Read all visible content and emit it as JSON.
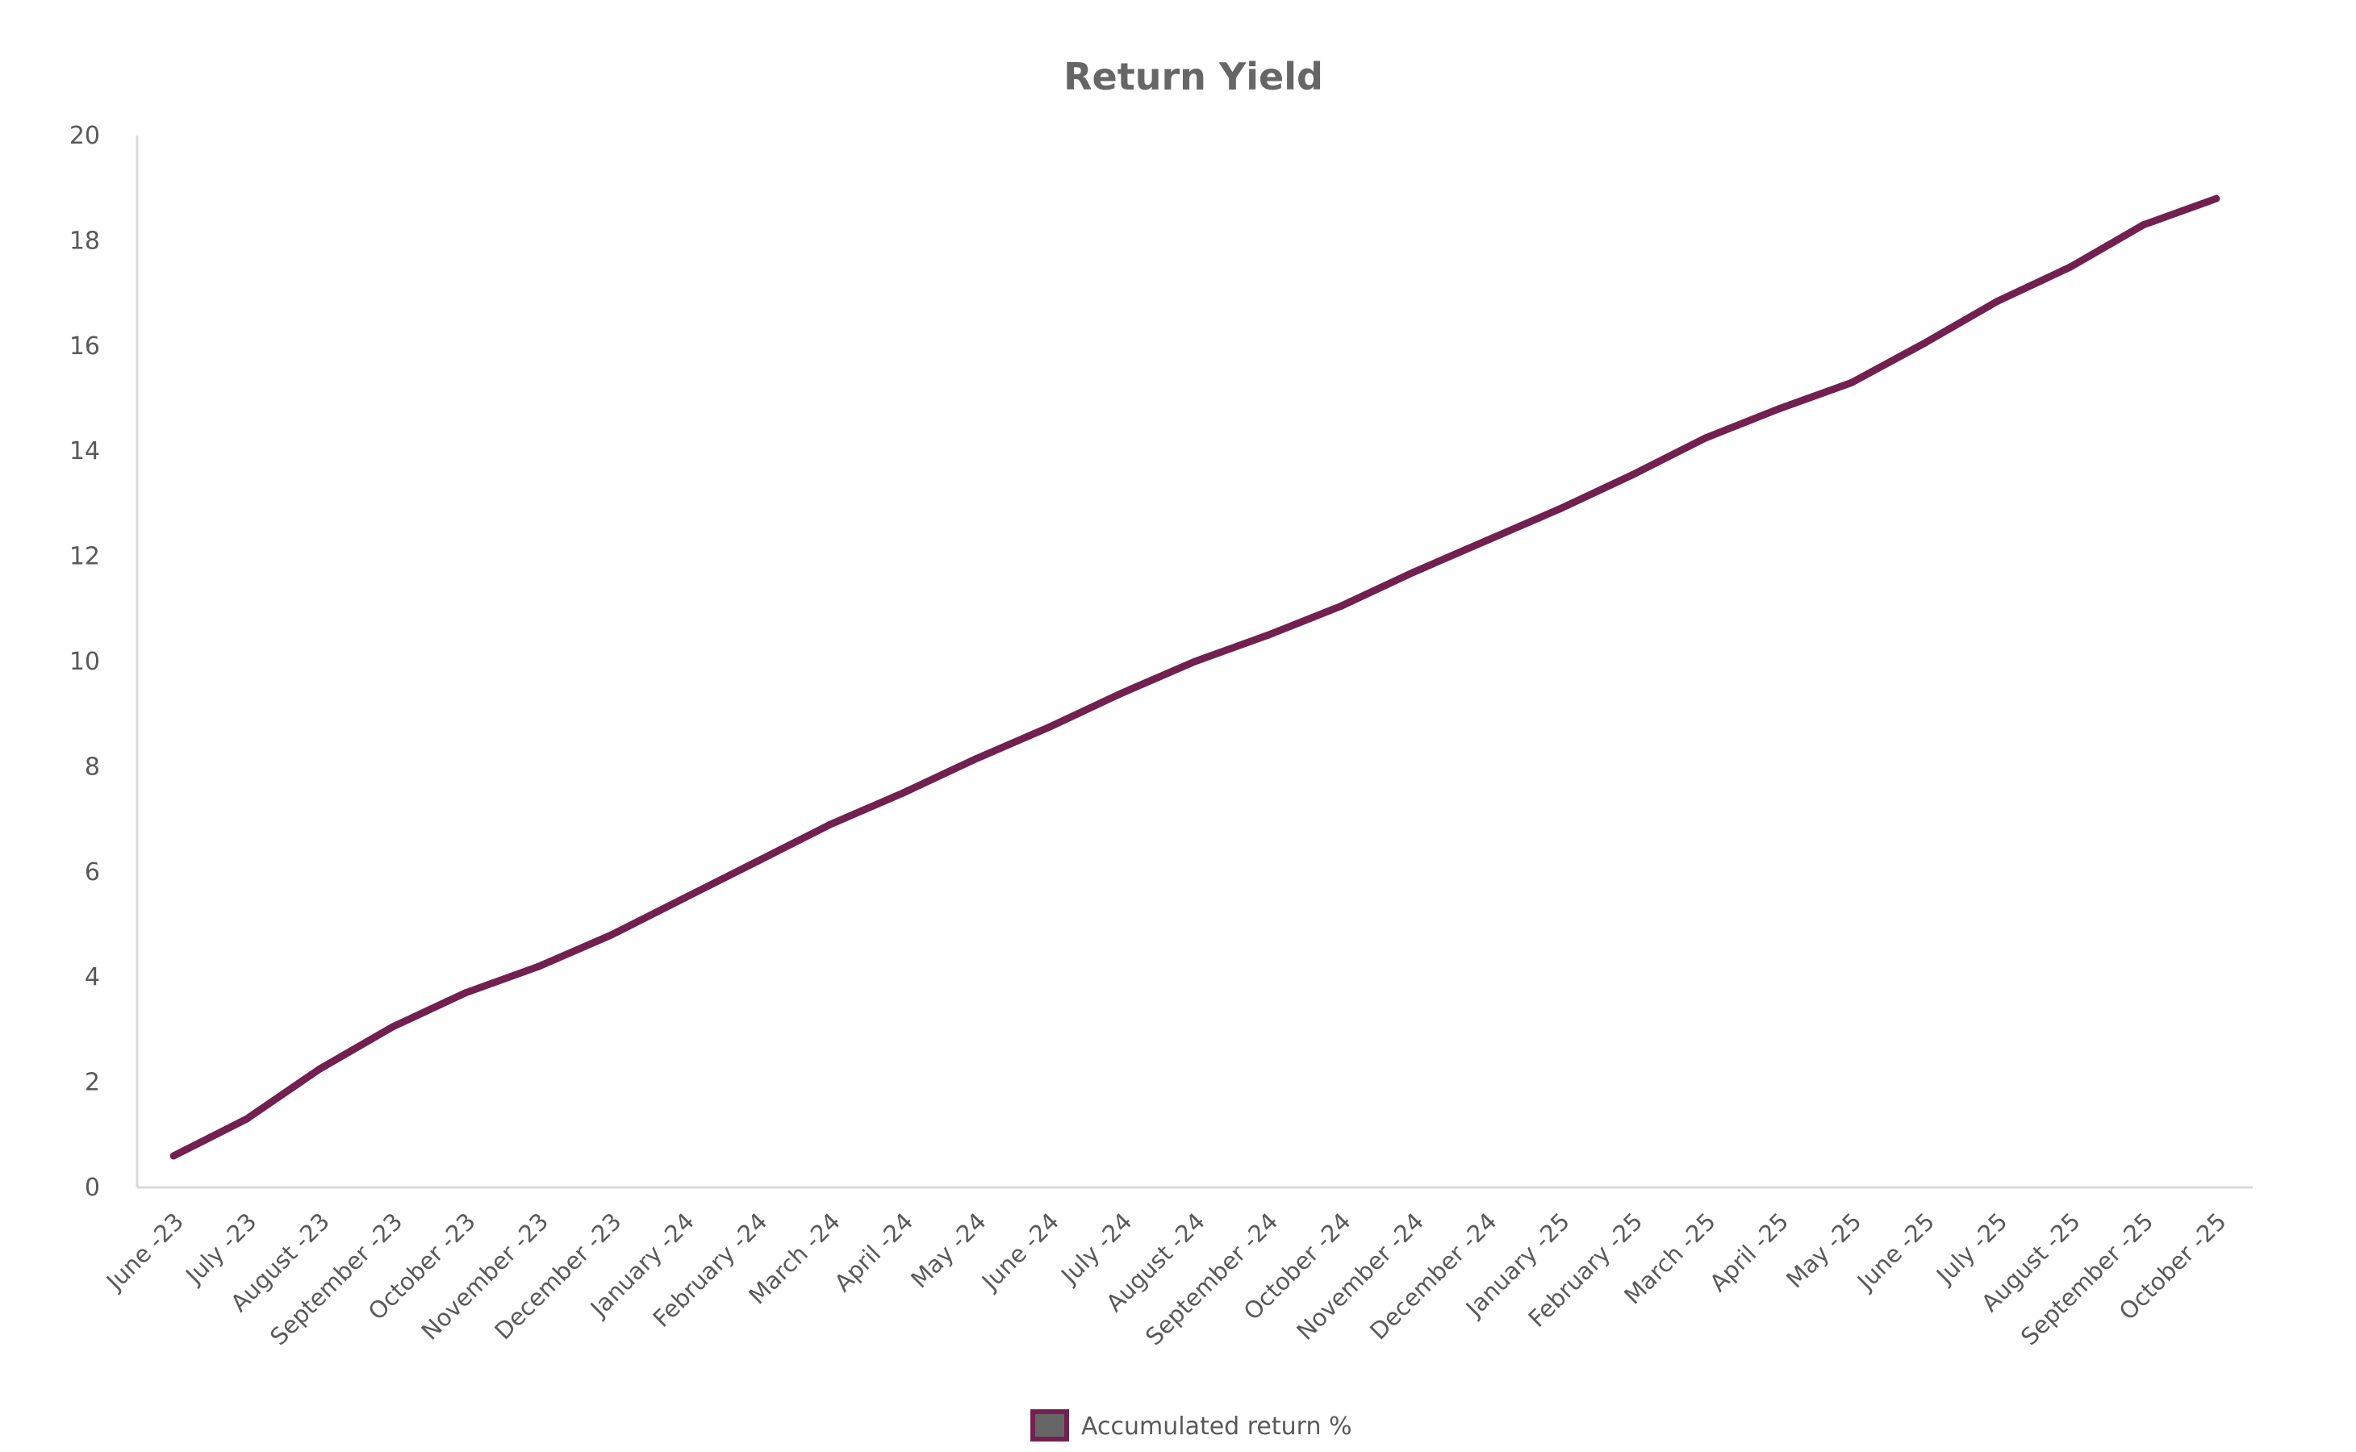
{
  "chart_data": {
    "type": "line",
    "title": "Return Yield",
    "xlabel": "",
    "ylabel": "",
    "ylim": [
      0,
      20
    ],
    "yticks": [
      0,
      2,
      4,
      6,
      8,
      10,
      12,
      14,
      16,
      18,
      20
    ],
    "grid": false,
    "legend_position": "bottom",
    "categories": [
      "June -23",
      "July -23",
      "August -23",
      "September -23",
      "October -23",
      "November -23",
      "December -23",
      "January -24",
      "February -24",
      "March -24",
      "April -24",
      "May -24",
      "June -24",
      "July -24",
      "August -24",
      "September -24",
      "October -24",
      "November -24",
      "December -24",
      "January -25",
      "February -25",
      "March -25",
      "April -25",
      "May -25",
      "June -25",
      "July -25",
      "August -25",
      "September -25",
      "October -25"
    ],
    "series": [
      {
        "name": "Accumulated return %",
        "color": "#722050",
        "values": [
          0.6,
          1.3,
          2.25,
          3.05,
          3.7,
          4.2,
          4.8,
          5.5,
          6.2,
          6.9,
          7.5,
          8.15,
          8.75,
          9.4,
          10.0,
          10.5,
          11.05,
          11.7,
          12.3,
          12.9,
          13.55,
          14.25,
          14.8,
          15.3,
          16.05,
          16.85,
          17.5,
          18.3,
          18.8
        ]
      }
    ]
  },
  "colors": {
    "series_line": "#722050",
    "legend_swatch_fill": "#666666",
    "axis_line": "#d9d9d9",
    "text": "#595959",
    "title": "#666666"
  }
}
